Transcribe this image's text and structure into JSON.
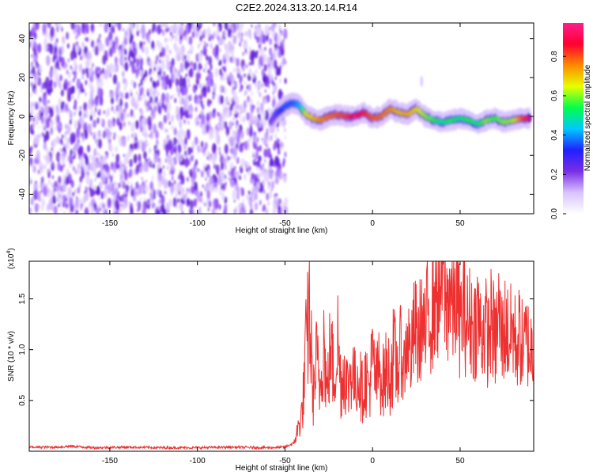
{
  "title": "C2E2.2024.313.20.14.R14",
  "chart_data": [
    {
      "type": "heatmap",
      "xlabel": "Height of straight line (km)",
      "ylabel": "Frequency (Hz)",
      "xlim": [
        -196,
        92
      ],
      "ylim": [
        -50,
        48
      ],
      "xticks": [
        -150,
        -100,
        -50,
        0,
        50
      ],
      "yticks": [
        -40,
        -20,
        0,
        20,
        40
      ],
      "colorbar": {
        "label": "Normalized spectral amplitude",
        "range": [
          0,
          0.97
        ],
        "ticks": [
          0.0,
          0.2,
          0.4,
          0.6,
          0.8
        ],
        "colors": [
          "#ffffff",
          "#d9c2ff",
          "#7a2ee6",
          "#2020ff",
          "#00c8ff",
          "#00ff4a",
          "#e6ff00",
          "#ff8a00",
          "#ff0030",
          "#ff1e8c"
        ]
      },
      "noise_region": {
        "x_range": [
          -196,
          -52
        ],
        "freq_range": [
          -50,
          48
        ],
        "amplitude_range": [
          0.0,
          0.15
        ]
      },
      "ridge": {
        "x": [
          -58,
          -54,
          -50,
          -46,
          -42,
          -38,
          -34,
          -30,
          -25,
          -20,
          -15,
          -10,
          -5,
          0,
          5,
          10,
          15,
          20,
          25,
          30,
          35,
          40,
          45,
          50,
          55,
          60,
          65,
          70,
          75,
          80,
          85,
          90
        ],
        "freq": [
          -3,
          2,
          5,
          7,
          6,
          1,
          -1,
          -2,
          0,
          1,
          0,
          0,
          2,
          -1,
          0,
          4,
          2,
          1,
          4,
          0,
          -2,
          -3,
          -2,
          -1,
          -2,
          -4,
          -2,
          -1,
          -3,
          -2,
          -1,
          -1
        ],
        "amplitude": [
          0.2,
          0.3,
          0.35,
          0.35,
          0.4,
          0.65,
          0.7,
          0.75,
          0.78,
          0.8,
          0.82,
          0.9,
          0.85,
          0.8,
          0.78,
          0.75,
          0.7,
          0.72,
          0.68,
          0.6,
          0.55,
          0.5,
          0.55,
          0.5,
          0.55,
          0.5,
          0.6,
          0.55,
          0.6,
          0.6,
          0.8,
          0.9
        ]
      }
    },
    {
      "type": "line",
      "xlabel": "Height of straight line (km)",
      "ylabel": "SNR (10 * v/v)",
      "yscale_label": "(x10",
      "yscale_exp": "4",
      "xlim": [
        -196,
        92
      ],
      "ylim": [
        0,
        18700
      ],
      "xticks": [
        -150,
        -100,
        -50,
        0,
        50
      ],
      "yticks": [
        5000,
        10000,
        15000
      ],
      "ytick_labels": [
        "0.5",
        "1.0",
        "1.5"
      ],
      "color": "#ee3030",
      "series": [
        {
          "x": [
            -196,
            -180,
            -172,
            -160,
            -140,
            -120,
            -100,
            -80,
            -60,
            -50,
            -45,
            -42,
            -40,
            -38,
            -36,
            -34,
            -32,
            -30,
            -28,
            -26,
            -24,
            -22,
            -20,
            -18,
            -16,
            -14,
            -12,
            -10,
            -8,
            -6,
            -4,
            -2,
            0,
            2,
            4,
            6,
            8,
            10,
            12,
            14,
            16,
            18,
            20,
            22,
            24,
            26,
            28,
            30,
            32,
            34,
            36,
            38,
            40,
            42,
            44,
            46,
            48,
            50,
            52,
            54,
            56,
            58,
            60,
            62,
            64,
            66,
            68,
            70,
            72,
            74,
            76,
            78,
            80,
            82,
            84,
            86,
            88,
            90,
            92
          ],
          "y": [
            400,
            400,
            500,
            350,
            400,
            350,
            350,
            400,
            350,
            400,
            800,
            2500,
            4000,
            10000,
            14000,
            5000,
            9000,
            6000,
            11500,
            5500,
            10500,
            7000,
            11200,
            6500,
            8200,
            6000,
            8500,
            6500,
            7800,
            5800,
            7200,
            6300,
            9000,
            6800,
            8200,
            6900,
            8000,
            7500,
            9500,
            8000,
            10000,
            8200,
            11500,
            9000,
            12500,
            10500,
            13000,
            11000,
            14500,
            13000,
            16500,
            15000,
            18700,
            14000,
            16000,
            14000,
            15500,
            12500,
            14000,
            12500,
            13000,
            12000,
            13500,
            11500,
            12500,
            11000,
            13000,
            10500,
            13500,
            11000,
            12500,
            11000,
            12000,
            10500,
            11500,
            10000,
            11000,
            10000,
            10500
          ]
        }
      ]
    }
  ]
}
